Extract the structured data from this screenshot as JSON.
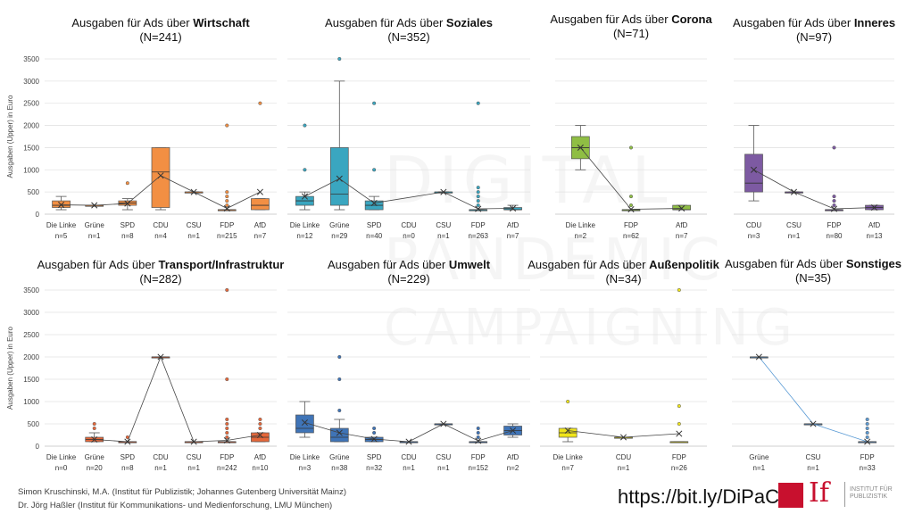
{
  "y_axis_label": "Ausgaben (Upper) in Euro",
  "footer": {
    "author1": "Simon Kruschinski, M.A. (Institut für Publizistik; Johannes Gutenberg Universität Mainz)",
    "author2": "Dr. Jörg Haßler (Institut für Kommunikations- und Medienforschung, LMU München)",
    "url": "https://bit.ly/DiPaCa",
    "logo_text": "INSTITUT FÜR PUBLIZISTIK",
    "logo_if": "If"
  },
  "watermark": [
    "DIGITAL",
    "PANDEMIC",
    "CAMPAIGNING"
  ],
  "chart_data": [
    {
      "type": "box",
      "title_prefix": "Ausgaben für Ads über ",
      "title_topic": "Wirtschaft",
      "n_total": "(N=241)",
      "color": "#f28f43",
      "ylim": [
        0,
        3500
      ],
      "yticks": [
        0,
        500,
        1000,
        1500,
        2000,
        2500,
        3000,
        3500
      ],
      "categories": [
        "Die Linke",
        "Grüne",
        "SPD",
        "CDU",
        "CSU",
        "FDP",
        "AfD"
      ],
      "counts": [
        "n=5",
        "n=1",
        "n=8",
        "n=4",
        "n=1",
        "n=215",
        "n=7"
      ],
      "boxes": [
        {
          "min": 100,
          "q1": 150,
          "median": 200,
          "q3": 300,
          "max": 400,
          "mean": 210,
          "outliers": []
        },
        {
          "min": 200,
          "q1": 200,
          "median": 200,
          "q3": 200,
          "max": 200,
          "mean": 200,
          "outliers": []
        },
        {
          "min": 100,
          "q1": 200,
          "median": 250,
          "q3": 300,
          "max": 350,
          "mean": 240,
          "outliers": [
            700
          ]
        },
        {
          "min": 100,
          "q1": 150,
          "median": 950,
          "q3": 1500,
          "max": 1500,
          "mean": 870,
          "outliers": []
        },
        {
          "min": 500,
          "q1": 500,
          "median": 500,
          "q3": 500,
          "max": 500,
          "mean": 500,
          "outliers": []
        },
        {
          "min": 100,
          "q1": 100,
          "median": 100,
          "q3": 100,
          "max": 100,
          "mean": 130,
          "outliers": [
            200,
            300,
            400,
            500,
            2000
          ]
        },
        {
          "min": 100,
          "q1": 100,
          "median": 200,
          "q3": 350,
          "max": 350,
          "mean": 500,
          "outliers": [
            2500
          ]
        }
      ]
    },
    {
      "type": "box",
      "title_prefix": "Ausgaben für Ads über ",
      "title_topic": "Soziales",
      "n_total": "(N=352)",
      "color": "#3aa6c0",
      "ylim": [
        0,
        3500
      ],
      "yticks": [
        0,
        500,
        1000,
        1500,
        2000,
        2500,
        3000,
        3500
      ],
      "categories": [
        "Die Linke",
        "Grüne",
        "SPD",
        "CDU",
        "CSU",
        "FDP",
        "AfD"
      ],
      "counts": [
        "n=12",
        "n=29",
        "n=40",
        "n=0",
        "n=1",
        "n=263",
        "n=7"
      ],
      "boxes": [
        {
          "min": 100,
          "q1": 200,
          "median": 300,
          "q3": 400,
          "max": 500,
          "mean": 400,
          "outliers": [
            1000,
            2000
          ]
        },
        {
          "min": 100,
          "q1": 200,
          "median": 450,
          "q3": 1500,
          "max": 3000,
          "mean": 800,
          "outliers": [
            3500
          ]
        },
        {
          "min": 100,
          "q1": 100,
          "median": 200,
          "q3": 300,
          "max": 400,
          "mean": 250,
          "outliers": [
            1000,
            2500
          ]
        },
        null,
        {
          "min": 500,
          "q1": 500,
          "median": 500,
          "q3": 500,
          "max": 500,
          "mean": 500,
          "outliers": []
        },
        {
          "min": 100,
          "q1": 100,
          "median": 100,
          "q3": 100,
          "max": 100,
          "mean": 120,
          "outliers": [
            200,
            300,
            400,
            500,
            600,
            2500
          ]
        },
        {
          "min": 100,
          "q1": 100,
          "median": 100,
          "q3": 150,
          "max": 200,
          "mean": 130,
          "outliers": []
        }
      ]
    },
    {
      "type": "box",
      "title_prefix": "Ausgaben für Ads über ",
      "title_topic": "Corona",
      "n_total": "(N=71)",
      "color": "#8fbe44",
      "ylim": [
        0,
        3500
      ],
      "yticks": [
        0,
        500,
        1000,
        1500,
        2000,
        2500,
        3000,
        3500
      ],
      "categories": [
        "Die Linke",
        "FDP",
        "AfD"
      ],
      "counts": [
        "n=2",
        "n=62",
        "n=7"
      ],
      "boxes": [
        {
          "min": 1000,
          "q1": 1250,
          "median": 1500,
          "q3": 1750,
          "max": 2000,
          "mean": 1500,
          "outliers": []
        },
        {
          "min": 100,
          "q1": 100,
          "median": 100,
          "q3": 100,
          "max": 100,
          "mean": 110,
          "outliers": [
            200,
            400,
            1500
          ]
        },
        {
          "min": 100,
          "q1": 100,
          "median": 100,
          "q3": 200,
          "max": 200,
          "mean": 130,
          "outliers": []
        }
      ]
    },
    {
      "type": "box",
      "title_prefix": "Ausgaben für Ads über ",
      "title_topic": "Inneres",
      "n_total": "(N=97)",
      "color": "#7d5aa2",
      "ylim": [
        0,
        3500
      ],
      "yticks": [
        0,
        500,
        1000,
        1500,
        2000,
        2500,
        3000,
        3500
      ],
      "categories": [
        "CDU",
        "CSU",
        "FDP",
        "AfD"
      ],
      "counts": [
        "n=3",
        "n=1",
        "n=80",
        "n=13"
      ],
      "boxes": [
        {
          "min": 300,
          "q1": 500,
          "median": 700,
          "q3": 1350,
          "max": 2000,
          "mean": 1000,
          "outliers": []
        },
        {
          "min": 500,
          "q1": 500,
          "median": 500,
          "q3": 500,
          "max": 500,
          "mean": 500,
          "outliers": []
        },
        {
          "min": 100,
          "q1": 100,
          "median": 100,
          "q3": 100,
          "max": 100,
          "mean": 120,
          "outliers": [
            200,
            300,
            400,
            1500
          ]
        },
        {
          "min": 100,
          "q1": 100,
          "median": 150,
          "q3": 200,
          "max": 200,
          "mean": 150,
          "outliers": []
        }
      ]
    },
    {
      "type": "box",
      "title_prefix": "Ausgaben für Ads über ",
      "title_topic": "Transport/Infrastruktur",
      "n_total": "(N=282)",
      "color": "#e5673a",
      "ylim": [
        0,
        3500
      ],
      "yticks": [
        0,
        500,
        1000,
        1500,
        2000,
        2500,
        3000,
        3500
      ],
      "categories": [
        "Die Linke",
        "Grüne",
        "SPD",
        "CDU",
        "CSU",
        "FDP",
        "AfD"
      ],
      "counts": [
        "n=0",
        "n=20",
        "n=8",
        "n=1",
        "n=1",
        "n=242",
        "n=10"
      ],
      "boxes": [
        null,
        {
          "min": 100,
          "q1": 100,
          "median": 150,
          "q3": 200,
          "max": 300,
          "mean": 150,
          "outliers": [
            400,
            500
          ]
        },
        {
          "min": 100,
          "q1": 100,
          "median": 100,
          "q3": 100,
          "max": 100,
          "mean": 100,
          "outliers": [
            200
          ]
        },
        {
          "min": 2000,
          "q1": 2000,
          "median": 2000,
          "q3": 2000,
          "max": 2000,
          "mean": 2000,
          "outliers": []
        },
        {
          "min": 100,
          "q1": 100,
          "median": 100,
          "q3": 100,
          "max": 100,
          "mean": 100,
          "outliers": []
        },
        {
          "min": 100,
          "q1": 100,
          "median": 100,
          "q3": 100,
          "max": 100,
          "mean": 130,
          "outliers": [
            200,
            300,
            400,
            500,
            600,
            1500,
            3500
          ]
        },
        {
          "min": 100,
          "q1": 100,
          "median": 200,
          "q3": 300,
          "max": 300,
          "mean": 250,
          "outliers": [
            400,
            500,
            600
          ]
        }
      ]
    },
    {
      "type": "box",
      "title_prefix": "Ausgaben für Ads über ",
      "title_topic": "Umwelt",
      "n_total": "(N=229)",
      "color": "#3f74b7",
      "ylim": [
        0,
        3500
      ],
      "yticks": [
        0,
        500,
        1000,
        1500,
        2000,
        2500,
        3000,
        3500
      ],
      "categories": [
        "Die Linke",
        "Grüne",
        "SPD",
        "CDU",
        "CSU",
        "FDP",
        "AfD"
      ],
      "counts": [
        "n=3",
        "n=38",
        "n=32",
        "n=1",
        "n=1",
        "n=152",
        "n=2"
      ],
      "boxes": [
        {
          "min": 200,
          "q1": 300,
          "median": 400,
          "q3": 700,
          "max": 1000,
          "mean": 530,
          "outliers": []
        },
        {
          "min": 100,
          "q1": 100,
          "median": 200,
          "q3": 400,
          "max": 600,
          "mean": 300,
          "outliers": [
            800,
            1500,
            2000
          ]
        },
        {
          "min": 100,
          "q1": 100,
          "median": 150,
          "q3": 200,
          "max": 200,
          "mean": 160,
          "outliers": [
            300,
            400
          ]
        },
        {
          "min": 100,
          "q1": 100,
          "median": 100,
          "q3": 100,
          "max": 100,
          "mean": 100,
          "outliers": []
        },
        {
          "min": 500,
          "q1": 500,
          "median": 500,
          "q3": 500,
          "max": 500,
          "mean": 500,
          "outliers": []
        },
        {
          "min": 100,
          "q1": 100,
          "median": 100,
          "q3": 100,
          "max": 100,
          "mean": 120,
          "outliers": [
            200,
            300,
            400
          ]
        },
        {
          "min": 200,
          "q1": 250,
          "median": 350,
          "q3": 450,
          "max": 500,
          "mean": 350,
          "outliers": []
        }
      ]
    },
    {
      "type": "box",
      "title_prefix": "Ausgaben für Ads über ",
      "title_topic": "Außenpolitik",
      "n_total": "(N=34)",
      "color": "#f0e51a",
      "ylim": [
        0,
        3500
      ],
      "yticks": [
        0,
        500,
        1000,
        1500,
        2000,
        2500,
        3000,
        3500
      ],
      "categories": [
        "Die Linke",
        "CDU",
        "FDP"
      ],
      "counts": [
        "n=7",
        "n=1",
        "n=26"
      ],
      "boxes": [
        {
          "min": 100,
          "q1": 200,
          "median": 300,
          "q3": 400,
          "max": 400,
          "mean": 350,
          "outliers": [
            1000
          ]
        },
        {
          "min": 200,
          "q1": 200,
          "median": 200,
          "q3": 200,
          "max": 200,
          "mean": 200,
          "outliers": []
        },
        {
          "min": 100,
          "q1": 100,
          "median": 100,
          "q3": 100,
          "max": 100,
          "mean": 280,
          "outliers": [
            500,
            900,
            3500
          ]
        }
      ]
    },
    {
      "type": "box",
      "title_prefix": "Ausgaben für Ads über ",
      "title_topic": "Sonstiges",
      "n_total": "(N=35)",
      "color": "#5b9bd5",
      "ylim": [
        0,
        3500
      ],
      "yticks": [
        0,
        500,
        1000,
        1500,
        2000,
        2500,
        3000,
        3500
      ],
      "categories": [
        "Grüne",
        "CSU",
        "FDP"
      ],
      "counts": [
        "n=1",
        "n=1",
        "n=33"
      ],
      "boxes": [
        {
          "min": 2000,
          "q1": 2000,
          "median": 2000,
          "q3": 2000,
          "max": 2000,
          "mean": 2000,
          "outliers": []
        },
        {
          "min": 500,
          "q1": 500,
          "median": 500,
          "q3": 500,
          "max": 500,
          "mean": 500,
          "outliers": []
        },
        {
          "min": 100,
          "q1": 100,
          "median": 100,
          "q3": 100,
          "max": 100,
          "mean": 100,
          "outliers": [
            200,
            300,
            400,
            500,
            600
          ]
        }
      ]
    }
  ]
}
